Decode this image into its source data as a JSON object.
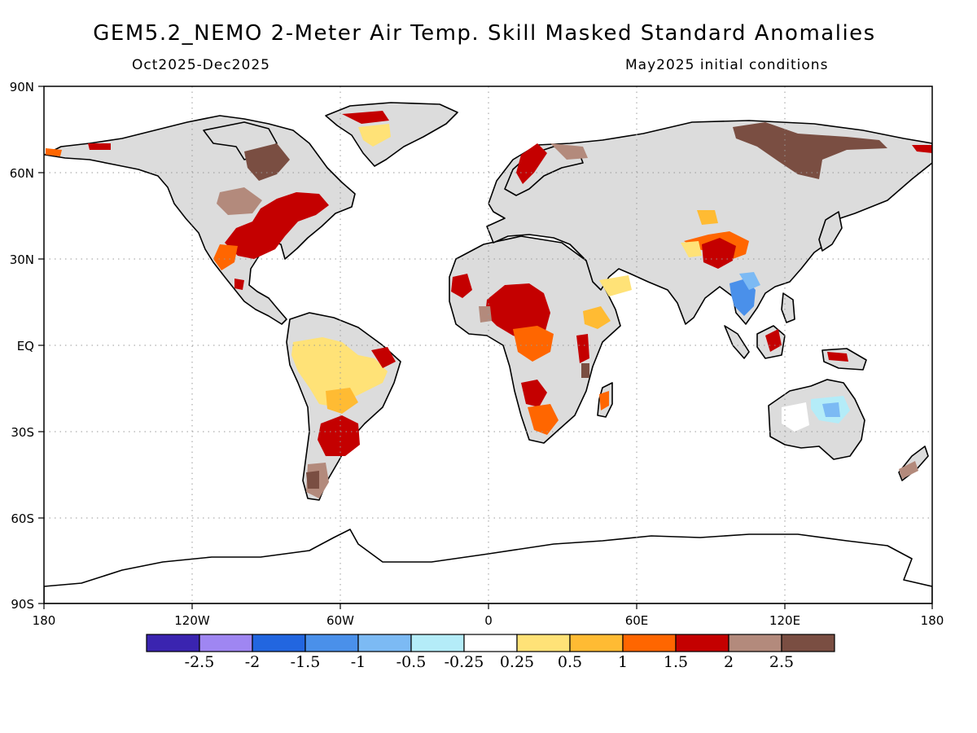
{
  "header": {
    "title": "GEM5.2_NEMO 2-Meter Air Temp. Skill Masked Standard Anomalies",
    "period": "Oct2025-Dec2025",
    "init": "May2025 initial conditions"
  },
  "axes": {
    "lat_labels": [
      "90N",
      "60N",
      "30N",
      "EQ",
      "30S",
      "60S",
      "90S"
    ],
    "lon_labels": [
      "180",
      "120W",
      "60W",
      "0",
      "60E",
      "120E",
      "180"
    ]
  },
  "colorbar": {
    "colors": [
      "#3a24b0",
      "#9f86f2",
      "#2266e0",
      "#4a90ea",
      "#7cbaf4",
      "#b4ecf8",
      "#ffffff",
      "#ffe277",
      "#ffbb33",
      "#ff6600",
      "#c40000",
      "#b38a7c",
      "#7a4e42"
    ],
    "labels": [
      "-2.5",
      "-2",
      "-1.5",
      "-1",
      "-0.5",
      "-0.25",
      "0.25",
      "0.5",
      "1",
      "1.5",
      "2",
      "2.5"
    ]
  },
  "map_colors": {
    "land_masked": "#dcdcdc",
    "ocean": "#ffffff",
    "coast": "#000000"
  }
}
